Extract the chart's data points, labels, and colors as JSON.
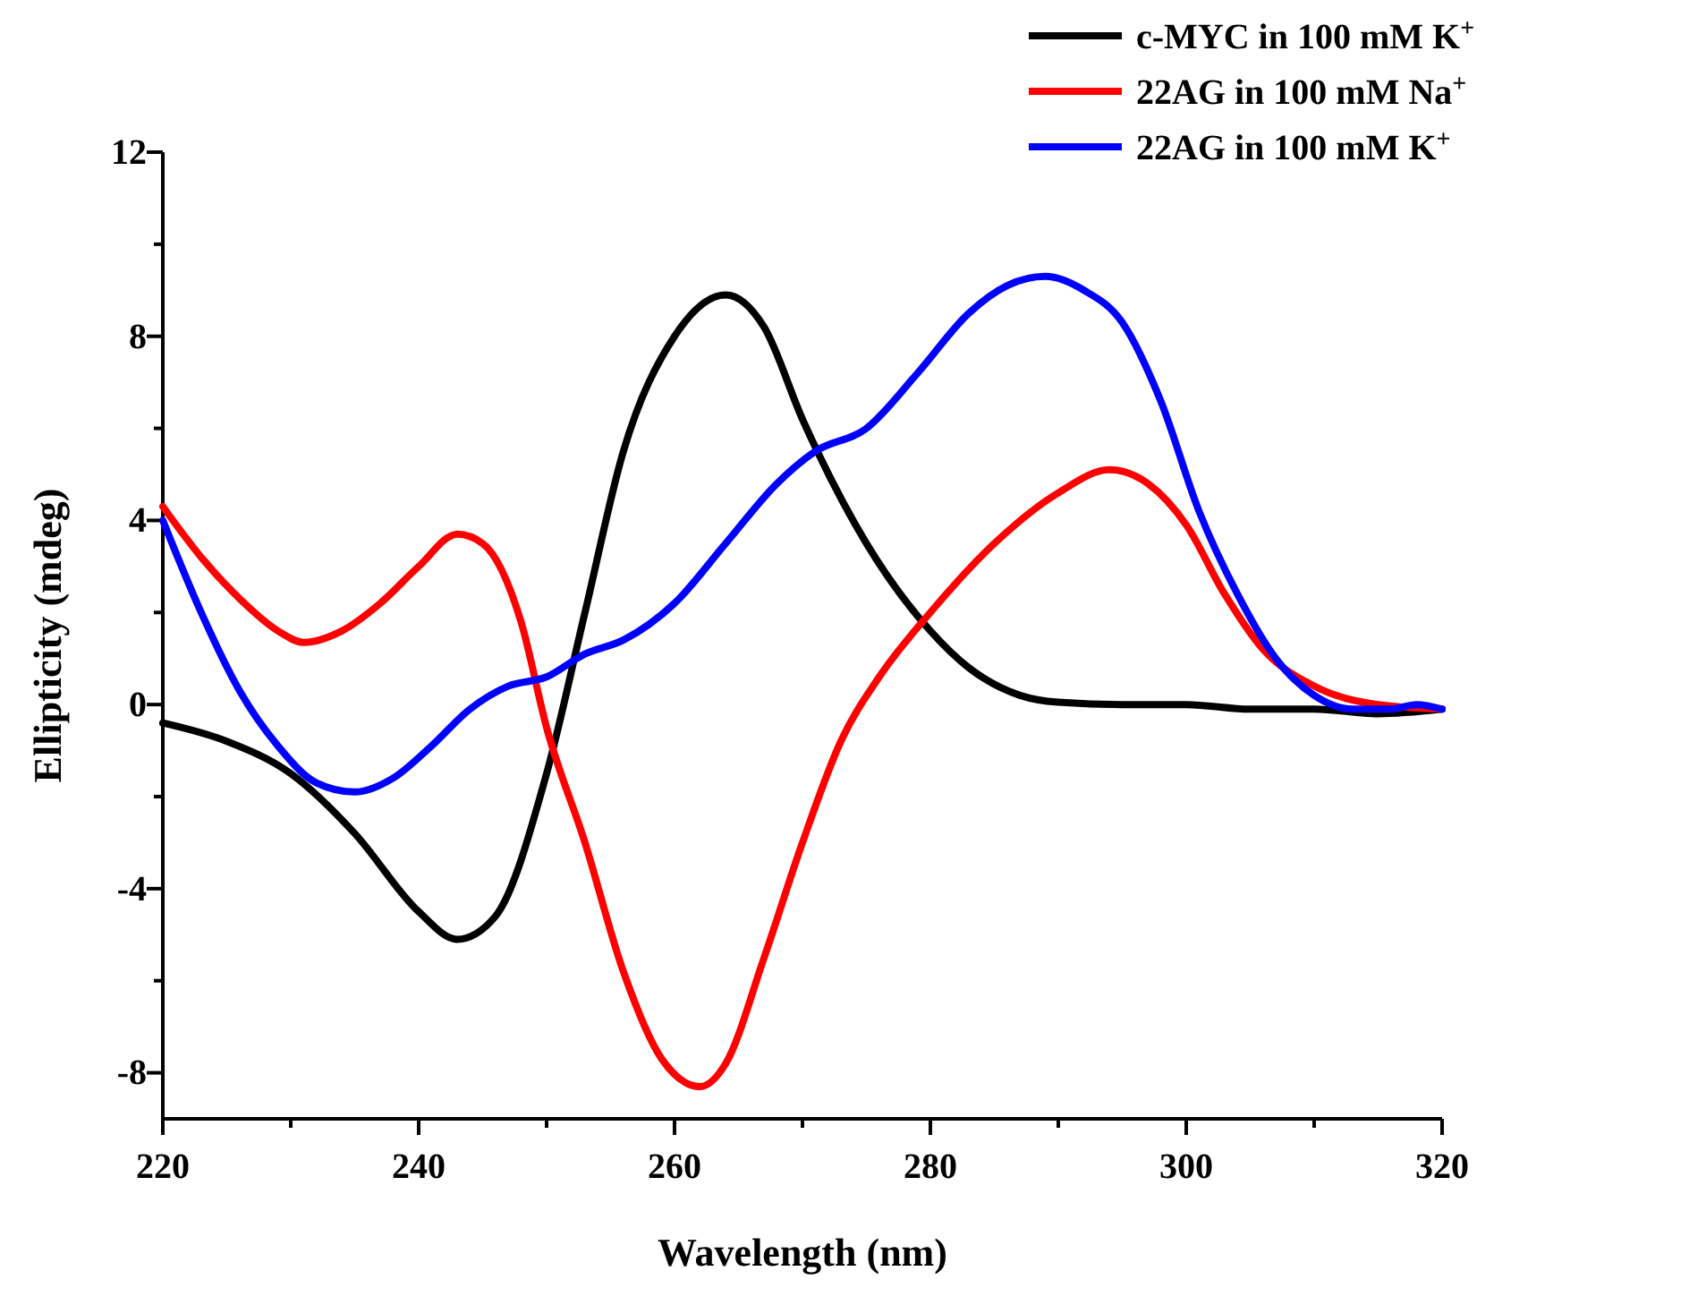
{
  "chart_data": {
    "type": "line",
    "xlabel": "Wavelength (nm)",
    "ylabel": "Ellipticity (mdeg)",
    "xlim": [
      220,
      320
    ],
    "ylim": [
      -9,
      12
    ],
    "xticks": [
      220,
      {
        "value": 230,
        "label": null
      },
      240,
      {
        "value": 250,
        "label": null
      },
      260,
      {
        "value": 270,
        "label": null
      },
      280,
      {
        "value": 290,
        "label": null
      },
      300,
      {
        "value": 310,
        "label": null
      },
      320
    ],
    "yticks": [
      -8,
      {
        "value": -6,
        "label": null
      },
      -4,
      {
        "value": -2,
        "label": null
      },
      0,
      {
        "value": 2,
        "label": null
      },
      4,
      {
        "value": 6,
        "label": null
      },
      8,
      {
        "value": 10,
        "label": null
      },
      12
    ],
    "legend": "top right",
    "grid": false,
    "marker": "none",
    "line_style": "solid",
    "series": [
      {
        "name": "c-MYC in 100 mM K$^{+}$",
        "color": "#000000",
        "x": [
          220,
          225,
          230,
          235,
          240,
          243,
          246,
          250,
          253,
          256,
          260,
          264,
          267,
          270,
          275,
          280,
          283,
          287,
          290,
          295,
          300,
          305,
          310,
          315,
          320
        ],
        "values": [
          -0.4,
          -0.8,
          -1.5,
          -2.8,
          -4.5,
          -5.1,
          -4.6,
          -1.5,
          2,
          5.5,
          8,
          8.9,
          8.2,
          6.2,
          3.5,
          1.6,
          0.8,
          0.2,
          0.05,
          0,
          0,
          -0.1,
          -0.1,
          -0.2,
          -0.1
        ]
      },
      {
        "name": "22AG in 100 mM Na$^{+}$",
        "color": "#ff0000",
        "x": [
          220,
          223,
          226,
          229,
          231,
          234,
          237,
          240,
          243,
          245,
          248,
          250,
          253,
          256,
          259,
          262,
          264,
          267,
          270,
          273,
          276,
          280,
          285,
          290,
          294,
          297,
          300,
          303,
          306,
          310,
          315,
          320
        ],
        "values": [
          4.3,
          3.2,
          2.3,
          1.6,
          1.35,
          1.6,
          2.2,
          3,
          3.7,
          3.5,
          1.8,
          -0.5,
          -3,
          -5.8,
          -7.7,
          -8.3,
          -7.8,
          -5.5,
          -3,
          -0.8,
          0.6,
          2,
          3.5,
          4.6,
          5.1,
          4.8,
          3.9,
          2.4,
          1.2,
          0.4,
          0,
          -0.1
        ]
      },
      {
        "name": "22AG in 100 mM K$^{+}$",
        "color": "#0000ff",
        "x": [
          220,
          223,
          226,
          229,
          232,
          235,
          238,
          241,
          244,
          247,
          250,
          253,
          256,
          260,
          264,
          268,
          271,
          275,
          279,
          283,
          286,
          289,
          292,
          295,
          298,
          301,
          304,
          307,
          310,
          313,
          316,
          318,
          320
        ],
        "values": [
          4,
          2,
          0.3,
          -0.9,
          -1.7,
          -1.9,
          -1.6,
          -0.9,
          -0.1,
          0.4,
          0.6,
          1.1,
          1.4,
          2.2,
          3.5,
          4.8,
          5.5,
          6,
          7.2,
          8.5,
          9.1,
          9.3,
          9,
          8.3,
          6.6,
          4.2,
          2.4,
          1,
          0.2,
          -0.1,
          -0.1,
          0,
          -0.1
        ]
      }
    ]
  }
}
